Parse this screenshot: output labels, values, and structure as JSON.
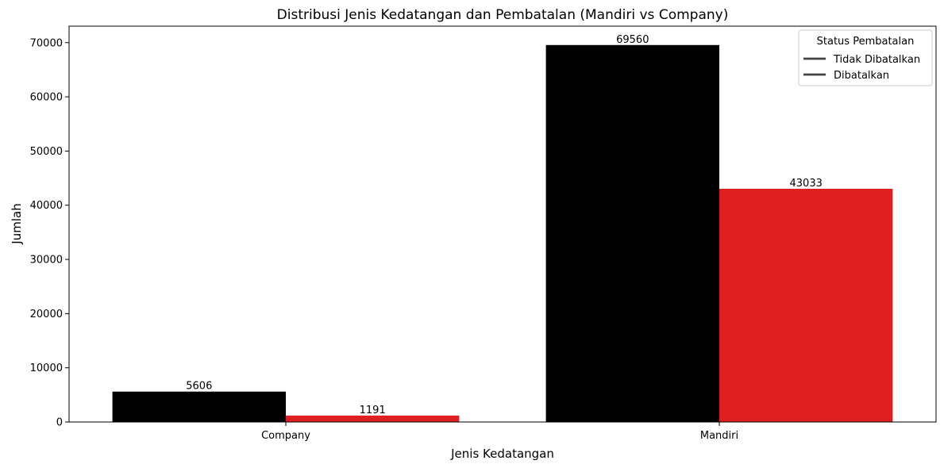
{
  "chart_data": {
    "type": "bar",
    "title": "Distribusi Jenis Kedatangan dan Pembatalan (Mandiri vs Company)",
    "xlabel": "Jenis Kedatangan",
    "ylabel": "Jumlah",
    "categories": [
      "Company",
      "Mandiri"
    ],
    "series": [
      {
        "name": "Tidak Dibatalkan",
        "values": [
          5606,
          69560
        ],
        "color": "#000000"
      },
      {
        "name": "Dibatalkan",
        "values": [
          1191,
          43033
        ],
        "color": "#de2023"
      }
    ],
    "ylim": [
      0,
      73039
    ],
    "yticks": [
      0,
      10000,
      20000,
      30000,
      40000,
      50000,
      60000,
      70000
    ],
    "grid": false,
    "legend": {
      "title": "Status Pembatalan",
      "placement": "top-right",
      "line_color": "#444444"
    },
    "data_labels": true
  }
}
